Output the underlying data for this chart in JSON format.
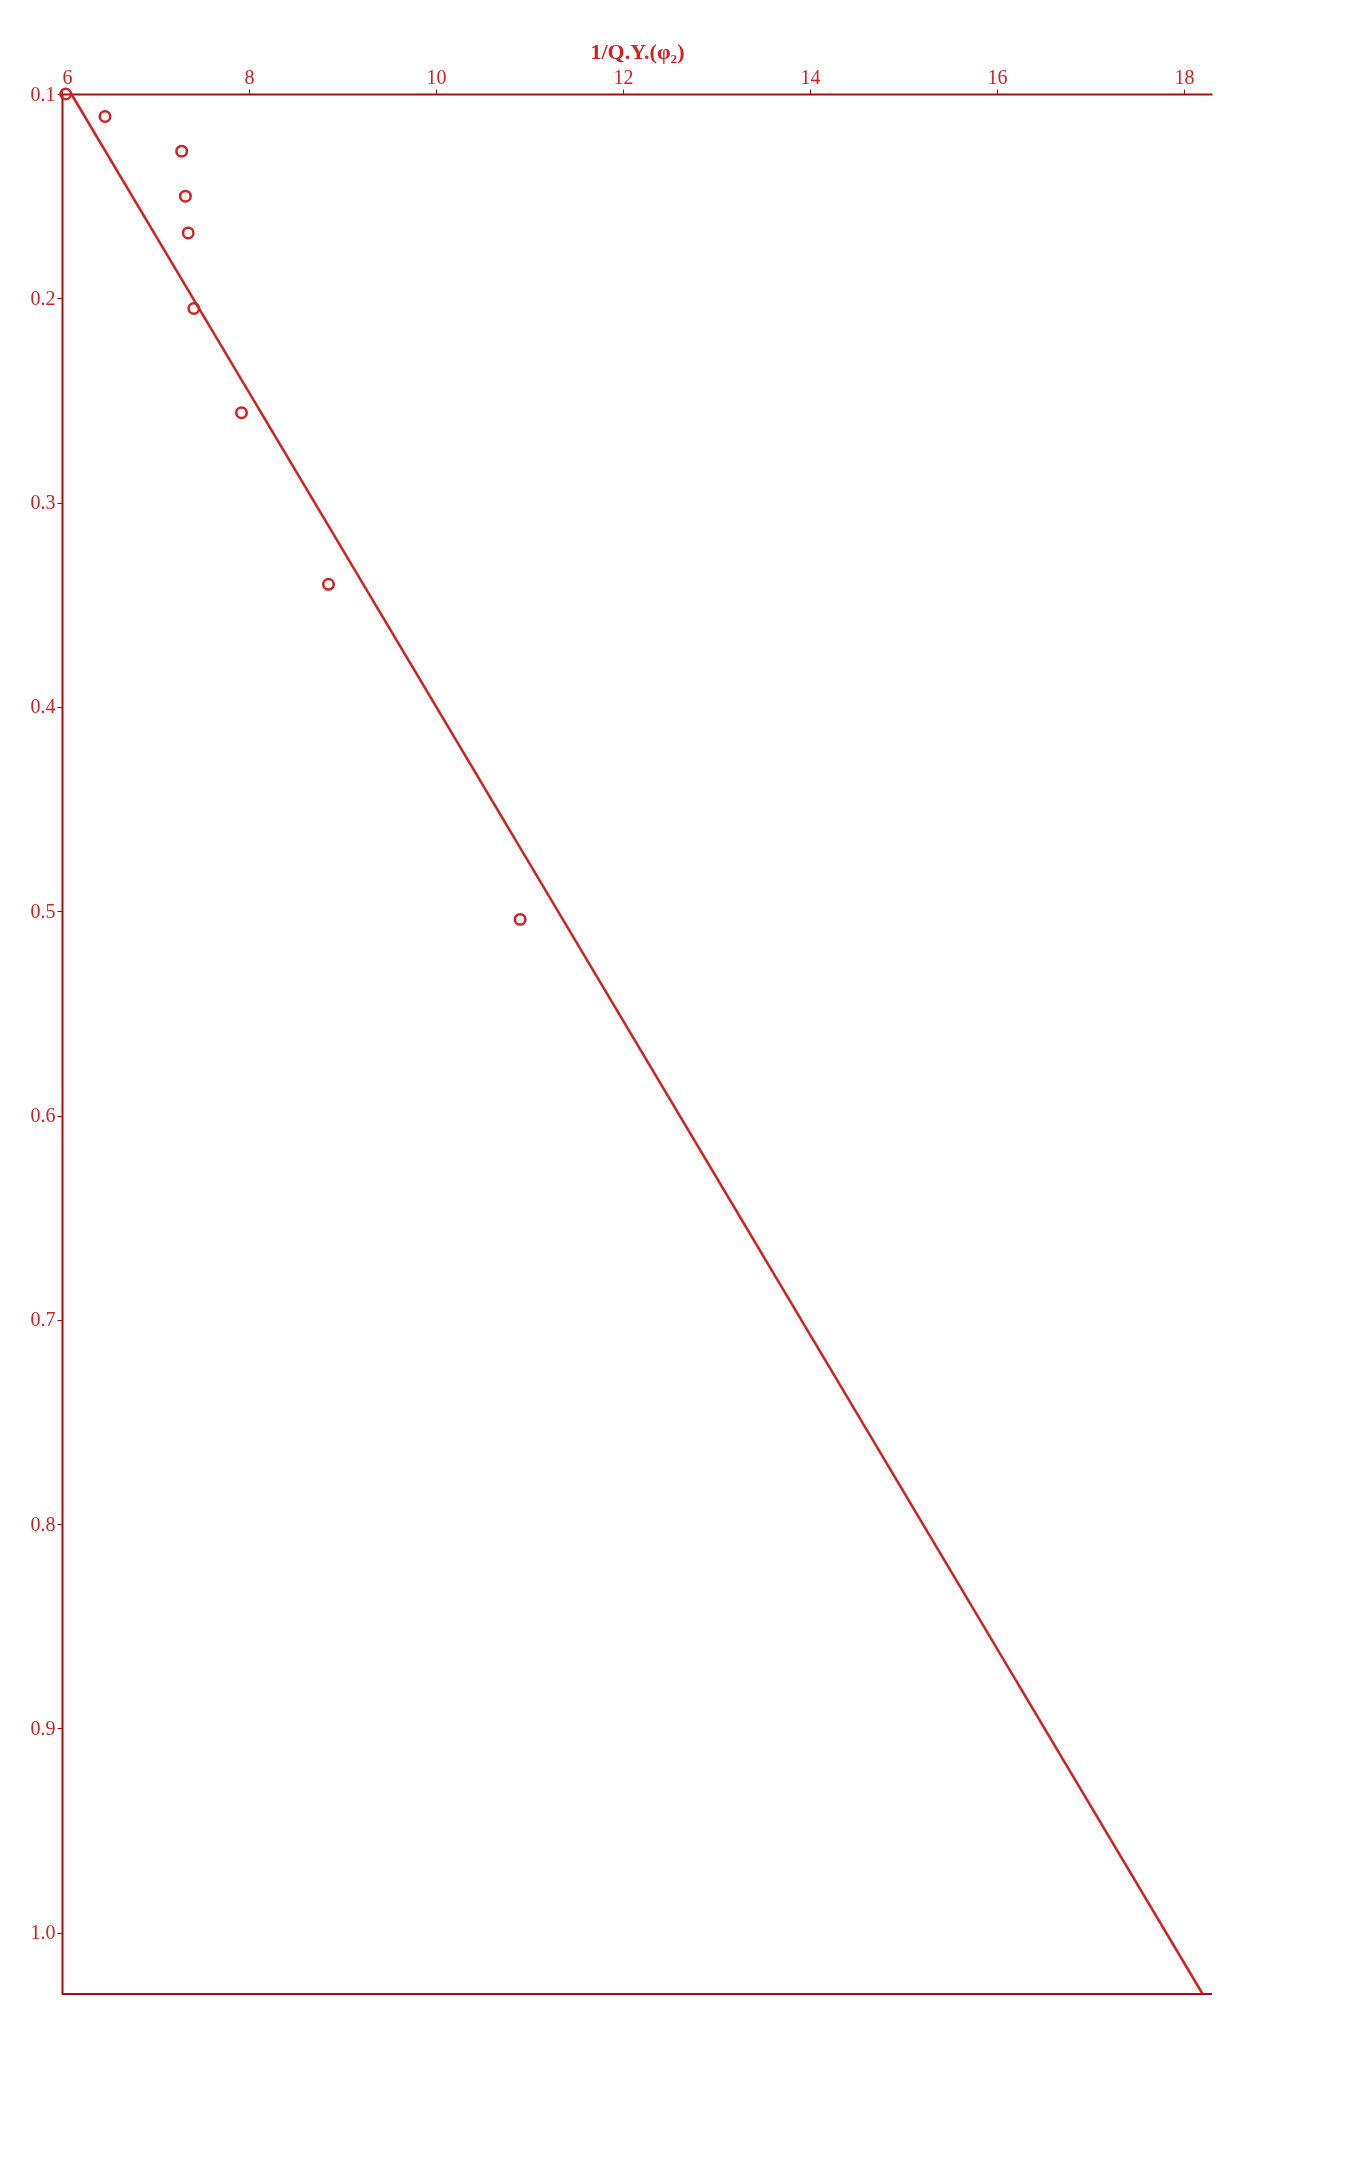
{
  "chart_data": {
    "type": "scatter",
    "xlabel": "1/Q.Y.(φ₂)",
    "xlim": [
      6,
      18.3
    ],
    "xticks": [
      6,
      8,
      10,
      12,
      14,
      16,
      18
    ],
    "ylim": [
      1.03,
      0.1
    ],
    "yticks": [
      0.1,
      0.2,
      0.3,
      0.4,
      0.5,
      0.6,
      0.7,
      0.8,
      0.9,
      {
        "value": 1.0,
        "label": "1.0"
      }
    ],
    "grid": false,
    "marker": "circle",
    "series": [
      {
        "color": "#d42020",
        "x": [
          6.04,
          6.46,
          7.28,
          7.32,
          7.35,
          7.41,
          7.92,
          8.85,
          10.9
        ],
        "values": [
          0.1,
          0.111,
          0.128,
          0.15,
          0.168,
          0.205,
          0.256,
          0.34,
          0.504
        ]
      },
      {
        "type": "line",
        "color": "#d42020",
        "marker": "none",
        "line_style": "solid",
        "x": [
          6.1,
          18.2
        ],
        "values": [
          0.1,
          1.03
        ]
      }
    ]
  }
}
